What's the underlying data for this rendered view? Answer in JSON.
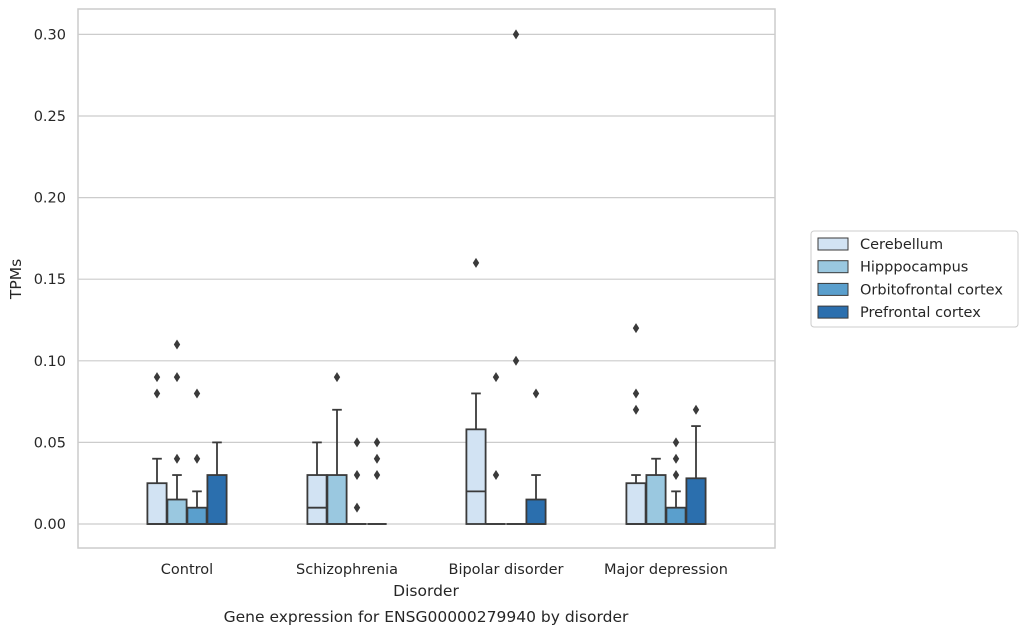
{
  "chart_data": {
    "type": "boxplot",
    "xlabel": "Disorder",
    "ylabel": "TPMs",
    "caption": "Gene expression for ENSG00000279940 by disorder",
    "ylim": [
      -0.015,
      0.315
    ],
    "yticks": [
      "0.00",
      "0.05",
      "0.10",
      "0.15",
      "0.20",
      "0.25",
      "0.30"
    ],
    "grid": "horizontal",
    "legend_position": "right",
    "categories": [
      "Control",
      "Schizophrenia",
      "Bipolar disorder",
      "Major depression"
    ],
    "series": [
      {
        "name": "Cerebellum",
        "color": "#d2e3f3",
        "boxes": [
          {
            "q1": 0.0,
            "median": 0.0,
            "q3": 0.025,
            "whisker_low": 0.0,
            "whisker_high": 0.04,
            "outliers": [
              0.08,
              0.09
            ]
          },
          {
            "q1": 0.0,
            "median": 0.01,
            "q3": 0.03,
            "whisker_low": 0.0,
            "whisker_high": 0.05,
            "outliers": []
          },
          {
            "q1": 0.0,
            "median": 0.02,
            "q3": 0.058,
            "whisker_low": 0.0,
            "whisker_high": 0.08,
            "outliers": [
              0.16
            ]
          },
          {
            "q1": 0.0,
            "median": 0.0,
            "q3": 0.025,
            "whisker_low": 0.0,
            "whisker_high": 0.03,
            "outliers": [
              0.07,
              0.08,
              0.12
            ]
          }
        ]
      },
      {
        "name": "Hipppocampus",
        "color": "#9ac8e0",
        "boxes": [
          {
            "q1": 0.0,
            "median": 0.0,
            "q3": 0.015,
            "whisker_low": 0.0,
            "whisker_high": 0.03,
            "outliers": [
              0.04,
              0.09,
              0.11
            ]
          },
          {
            "q1": 0.0,
            "median": 0.0,
            "q3": 0.03,
            "whisker_low": 0.0,
            "whisker_high": 0.07,
            "outliers": [
              0.09
            ]
          },
          {
            "q1": 0.0,
            "median": 0.0,
            "q3": 0.0,
            "whisker_low": 0.0,
            "whisker_high": 0.0,
            "outliers": [
              0.03,
              0.09
            ]
          },
          {
            "q1": 0.0,
            "median": 0.0,
            "q3": 0.03,
            "whisker_low": 0.0,
            "whisker_high": 0.04,
            "outliers": []
          }
        ]
      },
      {
        "name": "Orbitofrontal cortex",
        "color": "#5a9fcd",
        "boxes": [
          {
            "q1": 0.0,
            "median": 0.0,
            "q3": 0.01,
            "whisker_low": 0.0,
            "whisker_high": 0.02,
            "outliers": [
              0.04,
              0.08
            ]
          },
          {
            "q1": 0.0,
            "median": 0.0,
            "q3": 0.0,
            "whisker_low": 0.0,
            "whisker_high": 0.0,
            "outliers": [
              0.01,
              0.03,
              0.05
            ]
          },
          {
            "q1": 0.0,
            "median": 0.0,
            "q3": 0.0,
            "whisker_low": 0.0,
            "whisker_high": 0.0,
            "outliers": [
              0.1,
              0.3
            ]
          },
          {
            "q1": 0.0,
            "median": 0.0,
            "q3": 0.01,
            "whisker_low": 0.0,
            "whisker_high": 0.02,
            "outliers": [
              0.03,
              0.04,
              0.05
            ]
          }
        ]
      },
      {
        "name": "Prefrontal cortex",
        "color": "#2b6fae",
        "boxes": [
          {
            "q1": 0.0,
            "median": 0.0,
            "q3": 0.03,
            "whisker_low": 0.0,
            "whisker_high": 0.05,
            "outliers": []
          },
          {
            "q1": 0.0,
            "median": 0.0,
            "q3": 0.0,
            "whisker_low": 0.0,
            "whisker_high": 0.0,
            "outliers": [
              0.03,
              0.04,
              0.05
            ]
          },
          {
            "q1": 0.0,
            "median": 0.0,
            "q3": 0.015,
            "whisker_low": 0.0,
            "whisker_high": 0.03,
            "outliers": [
              0.08
            ]
          },
          {
            "q1": 0.0,
            "median": 0.0,
            "q3": 0.028,
            "whisker_low": 0.0,
            "whisker_high": 0.06,
            "outliers": [
              0.07
            ]
          }
        ]
      }
    ]
  }
}
